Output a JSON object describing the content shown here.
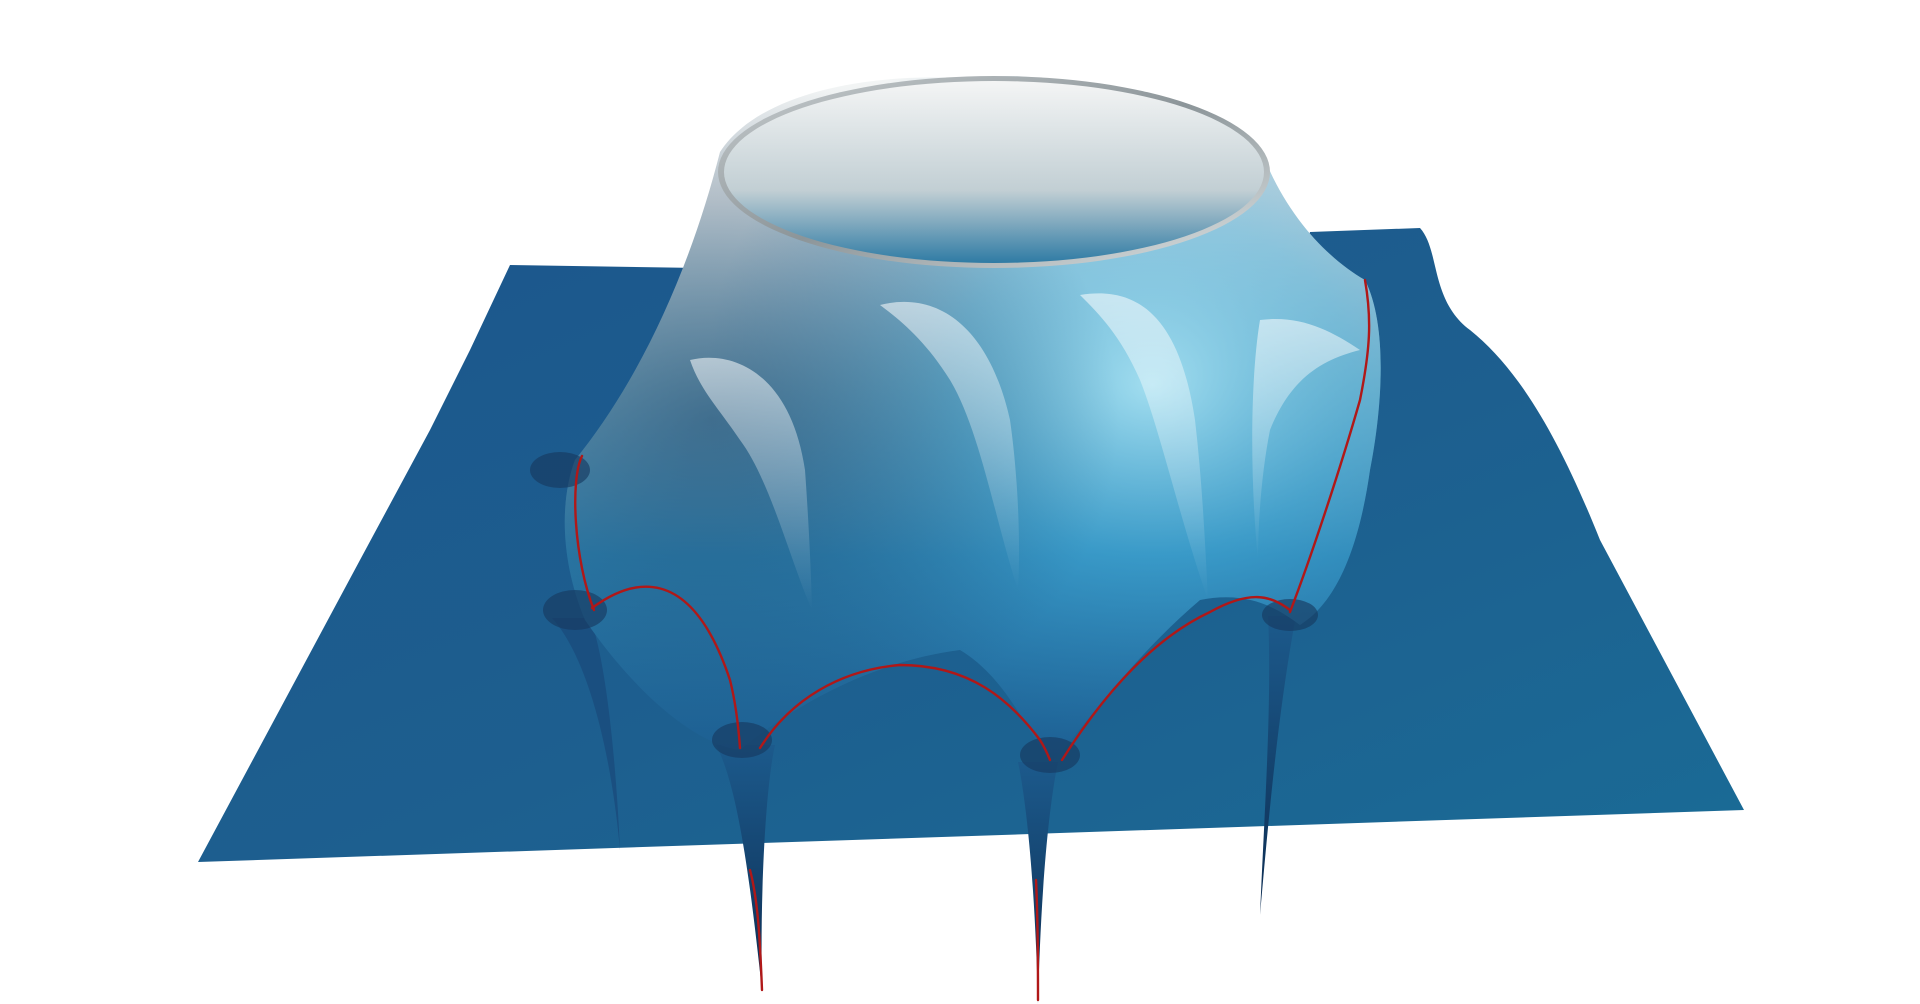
{
  "scene": {
    "background_color": "#ffffff",
    "plane_color": "#1f5f8f",
    "curve_color": "#b01818",
    "highlight_color": "#f2f4f4",
    "accent_color": "#2aa6d6"
  }
}
